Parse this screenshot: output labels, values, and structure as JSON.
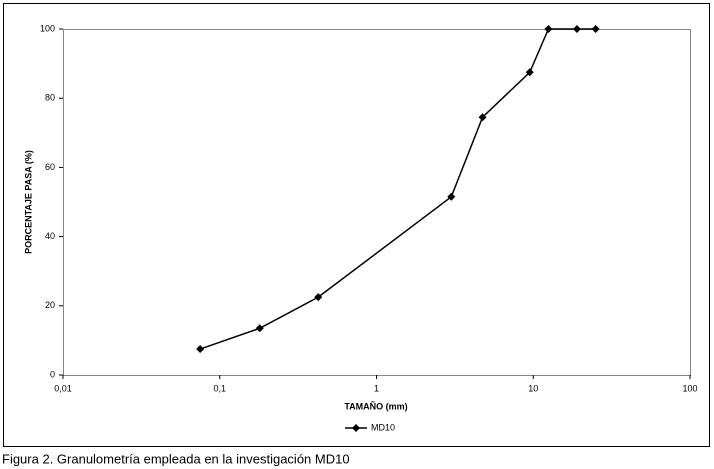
{
  "chart_data": {
    "type": "line",
    "x_label": "TAMAÑO (mm)",
    "y_label": "PORCENTAJE PASA (%)",
    "x_log": true,
    "xlim": [
      0.01,
      100
    ],
    "xticks": [
      {
        "value": 0.01,
        "label": "0,01"
      },
      {
        "value": 0.1,
        "label": "0,1"
      },
      1,
      10,
      100
    ],
    "ylim": [
      0,
      100
    ],
    "yticks": [
      0,
      20,
      40,
      60,
      80,
      100
    ],
    "grid": false,
    "legend": "bottom",
    "x": [
      0.075,
      0.18,
      0.425,
      3,
      4.75,
      9.5,
      12.5,
      19,
      25
    ],
    "series": [
      {
        "name": "MD10",
        "color": "#000000",
        "values": [
          7.5,
          13.5,
          22.5,
          51.5,
          74.5,
          87.5,
          100,
          100,
          100
        ]
      }
    ]
  },
  "caption": "Figura 2. Granulometría empleada en la investigación MD10"
}
